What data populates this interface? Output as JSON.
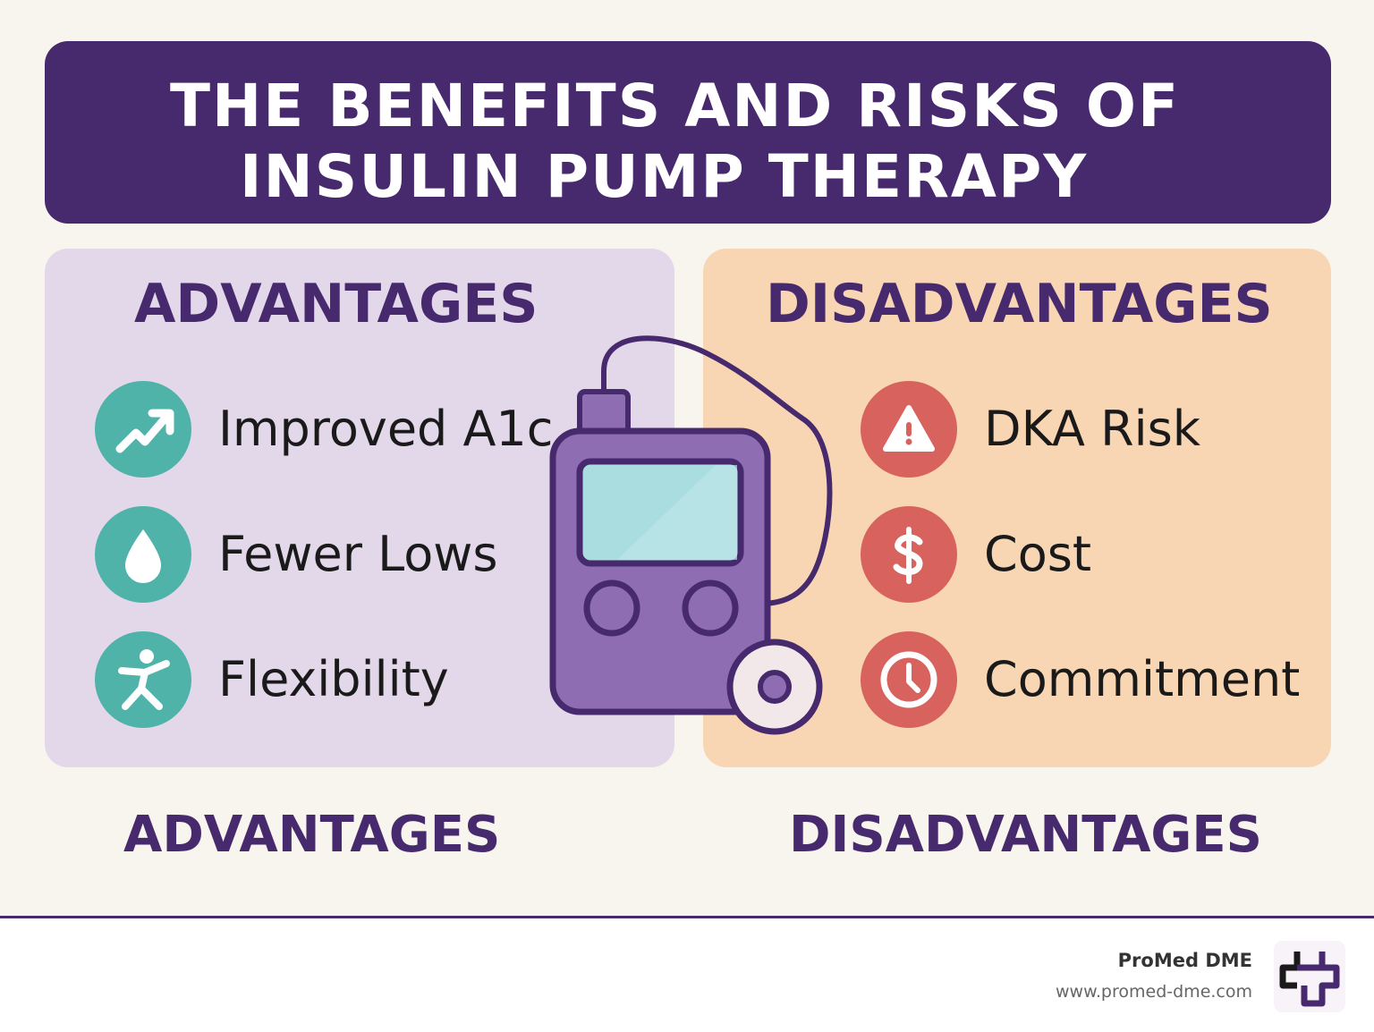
{
  "title": {
    "line1": "THE BENEFITS AND RISKS OF",
    "line2": "INSULIN PUMP THERAPY"
  },
  "advantages": {
    "heading": "ADVANTAGES",
    "items": [
      {
        "label": "Improved A1c",
        "icon": "trend-up-icon"
      },
      {
        "label": "Fewer Lows",
        "icon": "drop-icon"
      },
      {
        "label": "Flexibility",
        "icon": "person-icon"
      }
    ],
    "color": "#4fb3aa"
  },
  "disadvantages": {
    "heading": "DISADVANTAGES",
    "items": [
      {
        "label": "DKA Risk",
        "icon": "warning-icon"
      },
      {
        "label": "Cost",
        "icon": "dollar-icon"
      },
      {
        "label": "Commitment",
        "icon": "clock-icon"
      }
    ],
    "color": "#d8625e"
  },
  "footer": {
    "advantages_label": "ADVANTAGES",
    "disadvantages_label": "DISADVANTAGES"
  },
  "brand": {
    "name": "ProMed DME",
    "url": "www.promed-dme.com"
  },
  "colors": {
    "primary": "#47296d",
    "background": "#f8f4ee",
    "adv_panel": "#e3d7ea",
    "dis_panel": "#f9d6b3"
  }
}
